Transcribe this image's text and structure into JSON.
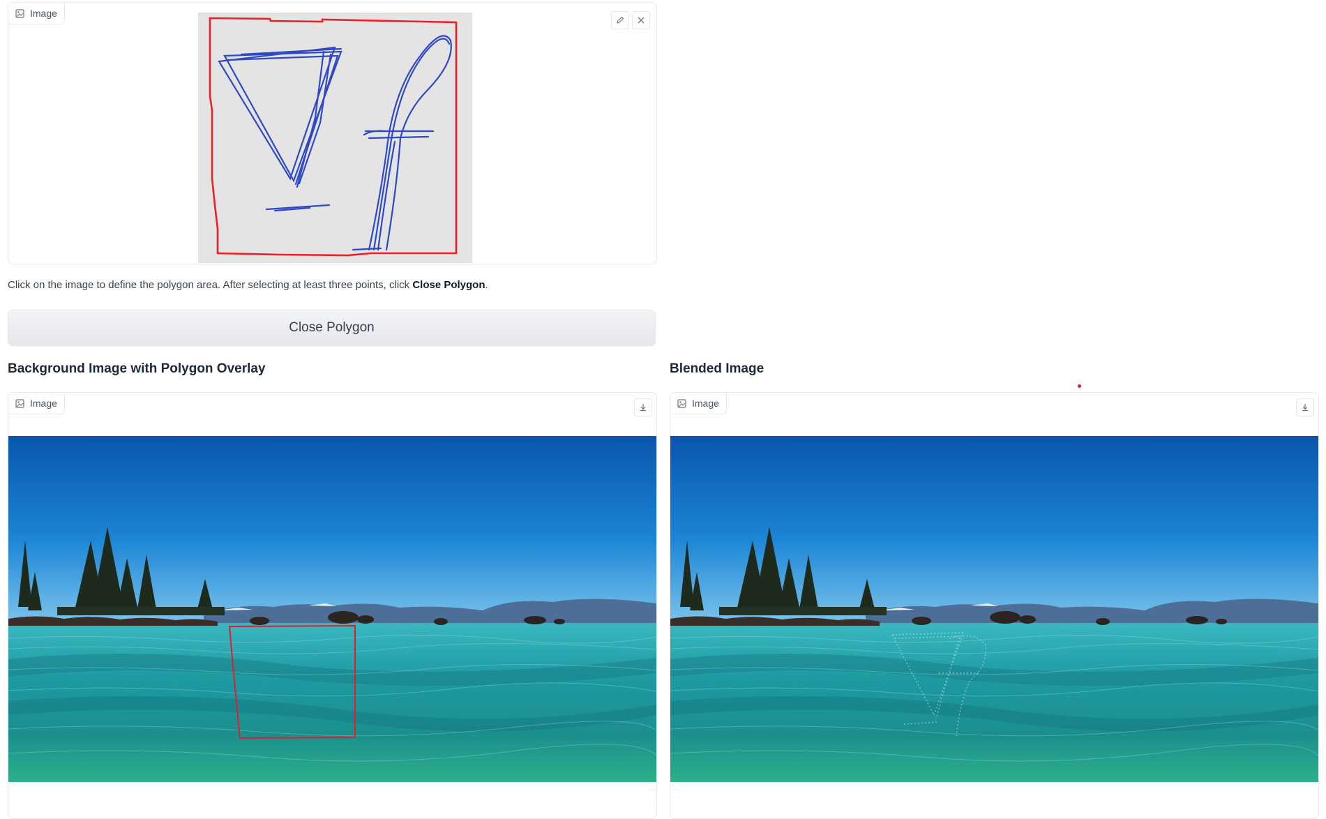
{
  "input_image": {
    "label": "Image",
    "edit_icon": "pencil-icon",
    "clear_icon": "close-icon"
  },
  "instruction": {
    "prefix": "Click on the image to define the polygon area. After selecting at least three points, click ",
    "emphasis": "Close Polygon",
    "suffix": "."
  },
  "close_polygon_button": {
    "label": "Close Polygon"
  },
  "overlay_section": {
    "title": "Background Image with Polygon Overlay",
    "image_label": "Image",
    "download_icon": "download-icon"
  },
  "blended_section": {
    "title": "Blended Image",
    "image_label": "Image",
    "download_icon": "download-icon"
  },
  "colors": {
    "polygon_stroke": "#e11d2e",
    "ink": "#2f49c4",
    "sky_top": "#0b5fb8",
    "water": "#1fa3a6"
  }
}
